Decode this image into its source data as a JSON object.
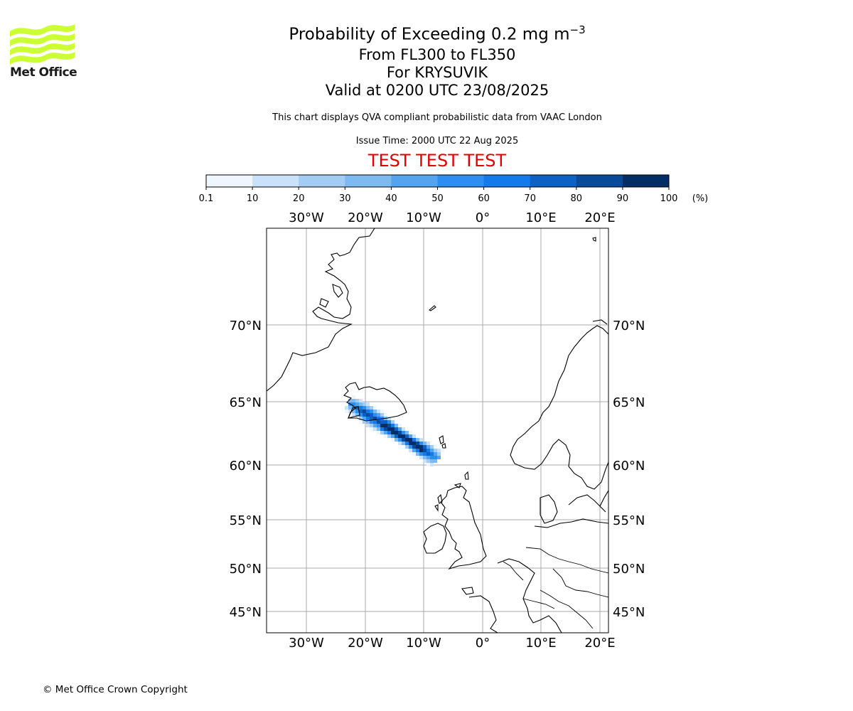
{
  "logo": {
    "brand": "Met Office",
    "accent_color": "#ccff33",
    "text_color": "#1a1a1a"
  },
  "title": {
    "main_prefix": "Probability of Exceeding 0.2 mg m",
    "main_exponent": "−3",
    "levels": "From FL300 to FL350",
    "volcano": "For KRYSUVIK",
    "valid": "Valid at 0200 UTC 23/08/2025"
  },
  "description": "This chart displays QVA compliant probabilistic data from VAAC London",
  "issue_time": "Issue Time: 2000 UTC 22 Aug 2025",
  "test_banner": "TEST TEST TEST",
  "test_color": "#e00000",
  "colorbar": {
    "ticks": [
      "0.1",
      "10",
      "20",
      "30",
      "40",
      "50",
      "60",
      "70",
      "80",
      "90",
      "100"
    ],
    "unit": "(%)",
    "colors": [
      "#f0f6fd",
      "#c9e2f9",
      "#a3ccf5",
      "#7dbaf2",
      "#52a4f0",
      "#2b8ef0",
      "#137aeb",
      "#0b61c5",
      "#064b9a",
      "#022d66"
    ]
  },
  "map": {
    "lon_labels": [
      "30°W",
      "20°W",
      "10°W",
      "0°",
      "10°E",
      "20°E"
    ],
    "lat_labels": [
      "70°N",
      "65°N",
      "60°N",
      "55°N",
      "50°N",
      "45°N"
    ],
    "gridline_color": "#aaaaaa"
  },
  "copyright": "© Met Office Crown Copyright"
}
